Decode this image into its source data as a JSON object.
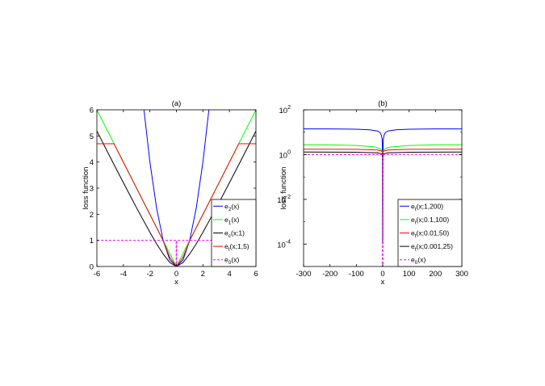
{
  "chart_data": [
    {
      "type": "line",
      "title": "(a)",
      "xlabel": "x",
      "ylabel": "loss function",
      "xlim": [
        -6,
        6
      ],
      "ylim": [
        0,
        6
      ],
      "xticks": [
        "-6",
        "-4",
        "-2",
        "0",
        "2",
        "4",
        "6"
      ],
      "yticks": [
        "0",
        "1",
        "2",
        "3",
        "4",
        "5",
        "6"
      ],
      "grid": false,
      "legend_position": "bottom-right",
      "series": [
        {
          "name": "e_2(x)",
          "label_main": "e",
          "label_sub": "2",
          "label_rest": "(x)",
          "color": "#0000ff",
          "x": [
            -2.45,
            -2,
            -1.5,
            -1,
            -0.5,
            0,
            0.5,
            1,
            1.5,
            2,
            2.45
          ],
          "y": [
            6.0,
            4.0,
            2.25,
            1.0,
            0.25,
            0,
            0.25,
            1.0,
            2.25,
            4.0,
            6.0
          ]
        },
        {
          "name": "e_1(x)",
          "label_main": "e",
          "label_sub": "1",
          "label_rest": "(x)",
          "color": "#00ff00",
          "x": [
            -6,
            0,
            6
          ],
          "y": [
            6.0,
            0,
            6.0
          ]
        },
        {
          "name": "e_c(x;1)",
          "label_main": "e",
          "label_sub": "c",
          "label_rest": "(x;1)",
          "color": "#000000",
          "x": [
            -6,
            -5,
            -4,
            -3,
            -2,
            -1.5,
            -1,
            -0.5,
            0,
            0.5,
            1,
            1.5,
            2,
            3,
            4,
            5,
            6
          ],
          "y": [
            5.19,
            4.19,
            3.21,
            2.24,
            1.31,
            0.87,
            0.48,
            0.15,
            0,
            0.15,
            0.48,
            0.87,
            1.31,
            2.24,
            3.21,
            4.19,
            5.19
          ]
        },
        {
          "name": "e_t(x;1,5)",
          "label_main": "e",
          "label_sub": "t",
          "label_rest": "(x;1,5)",
          "color": "#ff0000",
          "x": [
            -6,
            -4.7,
            -4.6,
            -4,
            -3,
            -2,
            -1.5,
            -1,
            -0.5,
            0,
            0.5,
            1,
            1.5,
            2,
            3,
            4,
            4.6,
            4.7,
            6
          ],
          "y": [
            4.7,
            4.7,
            4.59,
            3.99,
            2.99,
            1.99,
            1.49,
            0.99,
            0.35,
            0,
            0.35,
            0.99,
            1.49,
            1.99,
            2.99,
            3.99,
            4.59,
            4.7,
            4.7
          ]
        },
        {
          "name": "e_0(x)",
          "label_main": "e",
          "label_sub": "0",
          "label_rest": "(x)",
          "color": "#ff00ff",
          "dashed": true,
          "x": [
            -6,
            -0.02,
            -0.02,
            0.02,
            0.02,
            6
          ],
          "y": [
            1,
            1,
            0,
            0,
            1,
            1
          ]
        }
      ]
    },
    {
      "type": "line",
      "title": "(b)",
      "xlabel": "x",
      "ylabel": "loss function",
      "xlim": [
        -300,
        300
      ],
      "ylim_log10": [
        -5,
        2
      ],
      "yscale": "log",
      "xticks": [
        "-300",
        "-200",
        "-100",
        "0",
        "100",
        "200",
        "300"
      ],
      "yticks": [
        {
          "base": "10",
          "exp": "2"
        },
        {
          "base": "10",
          "exp": "0"
        },
        {
          "base": "10",
          "exp": "-2"
        },
        {
          "base": "10",
          "exp": "-4"
        }
      ],
      "grid": false,
      "legend_position": "bottom-right",
      "series": [
        {
          "name": "e_t(x;1,200)",
          "label_main": "e",
          "label_sub": "t",
          "label_rest": "(x;1,200)",
          "color": "#0000ff",
          "x": [
            -300,
            -200,
            -100,
            -50,
            -20,
            -10,
            -5,
            -2,
            -0.5,
            0,
            0.5,
            2,
            5,
            10,
            20,
            50,
            100,
            200,
            300
          ],
          "y": [
            14.1,
            14.0,
            13.6,
            12.8,
            11.3,
            9.7,
            7.3,
            4.7,
            0.5,
            0.0001,
            0.5,
            4.7,
            7.3,
            9.7,
            11.3,
            12.8,
            13.6,
            14.0,
            14.1
          ]
        },
        {
          "name": "e_t(x;0.1,100)",
          "label_main": "e",
          "label_sub": "t",
          "label_rest": "(x;0.1,100)",
          "color": "#00ff00",
          "x": [
            -300,
            -200,
            -100,
            -30,
            -10,
            -3,
            -1,
            -0.2,
            0,
            0.2,
            1,
            3,
            10,
            30,
            100,
            200,
            300
          ],
          "y": [
            2.75,
            2.72,
            2.55,
            2.2,
            1.85,
            1.5,
            1.2,
            0.4,
            0.0001,
            0.4,
            1.2,
            1.5,
            1.85,
            2.2,
            2.55,
            2.72,
            2.75
          ]
        },
        {
          "name": "e_t(x;0.01,50)",
          "label_main": "e",
          "label_sub": "t",
          "label_rest": "(x;0.01,50)",
          "color": "#ff0000",
          "x": [
            -300,
            -100,
            -20,
            -5,
            -1,
            -0.1,
            0,
            0.1,
            1,
            5,
            20,
            100,
            300
          ],
          "y": [
            1.75,
            1.72,
            1.6,
            1.45,
            1.3,
            0.6,
            0.0001,
            0.6,
            1.3,
            1.45,
            1.6,
            1.72,
            1.75
          ]
        },
        {
          "name": "e_t(x;0.001,25)",
          "label_main": "e",
          "label_sub": "t",
          "label_rest": "(x;0.001,25)",
          "color": "#000000",
          "x": [
            -300,
            -100,
            -20,
            -5,
            -1,
            -0.05,
            0,
            0.05,
            1,
            5,
            20,
            100,
            300
          ],
          "y": [
            1.3,
            1.28,
            1.2,
            1.1,
            1.0,
            0.7,
            0.0001,
            0.7,
            1.0,
            1.1,
            1.2,
            1.28,
            1.3
          ]
        },
        {
          "name": "e_0(x)",
          "label_main": "e",
          "label_sub": "0",
          "label_rest": "(x)",
          "color": "#ff00ff",
          "dashed": true,
          "x": [
            -300,
            -1,
            -1,
            1,
            1,
            300
          ],
          "y": [
            1,
            1,
            1e-05,
            1e-05,
            1,
            1
          ]
        }
      ]
    }
  ]
}
